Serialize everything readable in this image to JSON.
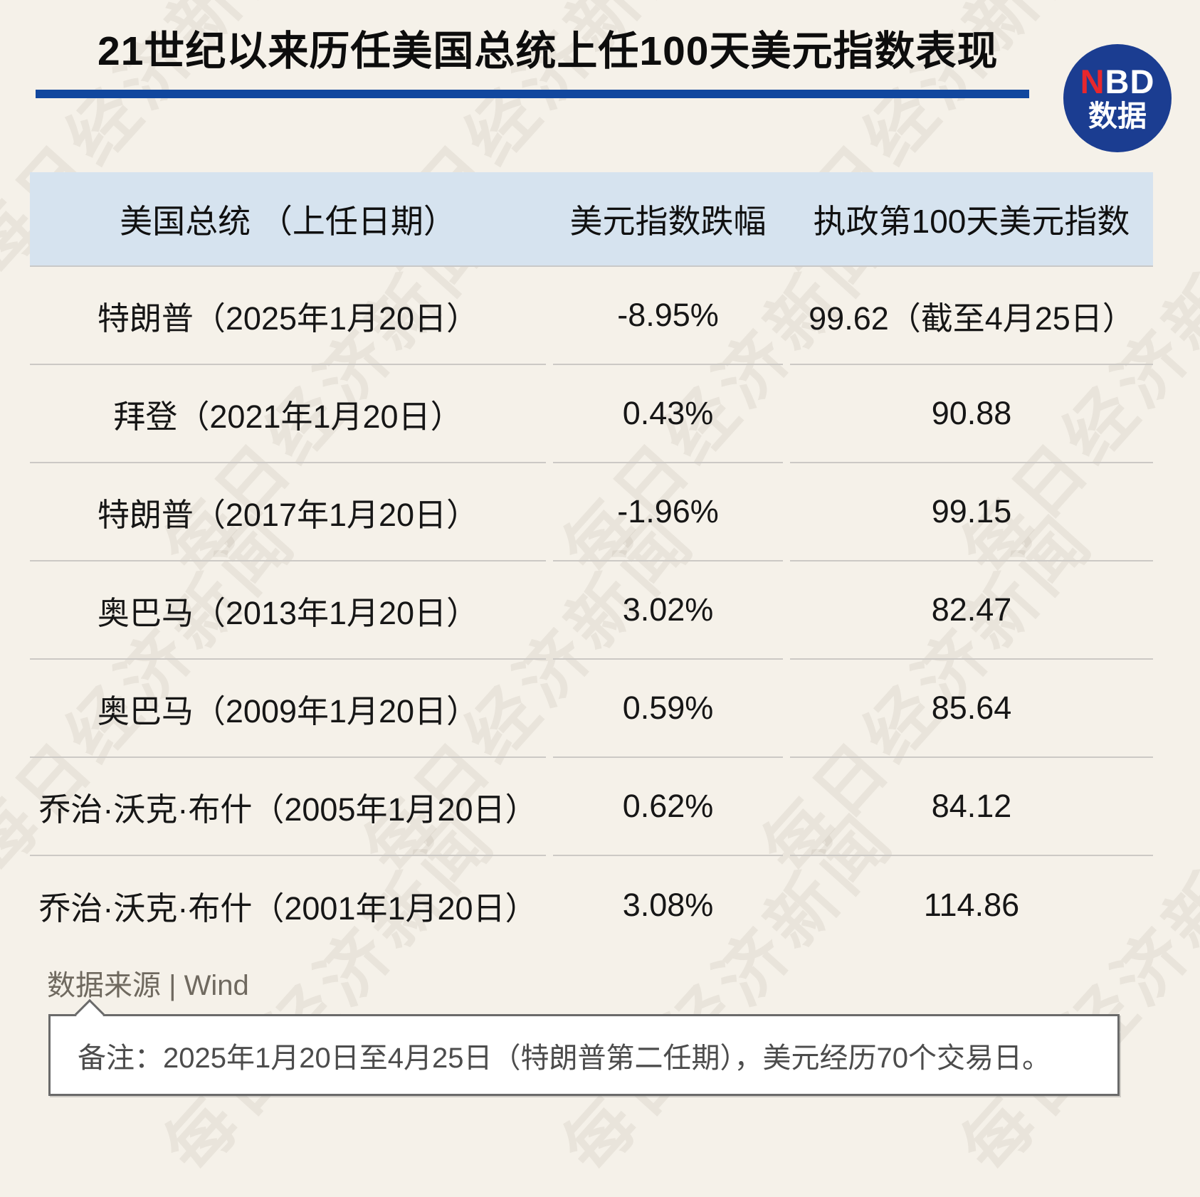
{
  "page": {
    "background_color": "#f5f1e9",
    "watermark": {
      "text": "每日经济新闻"
    }
  },
  "header": {
    "title": "21世纪以来历任美国总统上任100天美元指数表现",
    "underline_color": "#11479e",
    "logo": {
      "red_text": "N",
      "white_text": "BD",
      "subtitle": "数据",
      "bg_color": "#1b3d91",
      "red_color": "#e8272d"
    }
  },
  "chart_data": {
    "type": "table",
    "title": "21世纪以来历任美国总统上任100天美元指数表现",
    "columns": [
      "美国总统 （上任日期）",
      "美元指数跌幅",
      "执政第100天美元指数"
    ],
    "rows": [
      [
        "特朗普（2025年1月20日）",
        "-8.95%",
        "99.62（截至4月25日）"
      ],
      [
        "拜登（2021年1月20日）",
        "0.43%",
        "90.88"
      ],
      [
        "特朗普（2017年1月20日）",
        "-1.96%",
        "99.15"
      ],
      [
        "奥巴马（2013年1月20日）",
        "3.02%",
        "82.47"
      ],
      [
        "奥巴马（2009年1月20日）",
        "0.59%",
        "85.64"
      ],
      [
        "乔治·沃克·布什（2005年1月20日）",
        "0.62%",
        "84.12"
      ],
      [
        "乔治·沃克·布什（2001年1月20日）",
        "3.08%",
        "114.86"
      ]
    ],
    "header_bg_color": "#d6e3ef",
    "grid": "horizontal-separators-only",
    "legend_position": "none"
  },
  "footer": {
    "source": "数据来源 | Wind",
    "note": "备注：2025年1月20日至4月25日（特朗普第二任期），美元经历70个交易日。"
  }
}
